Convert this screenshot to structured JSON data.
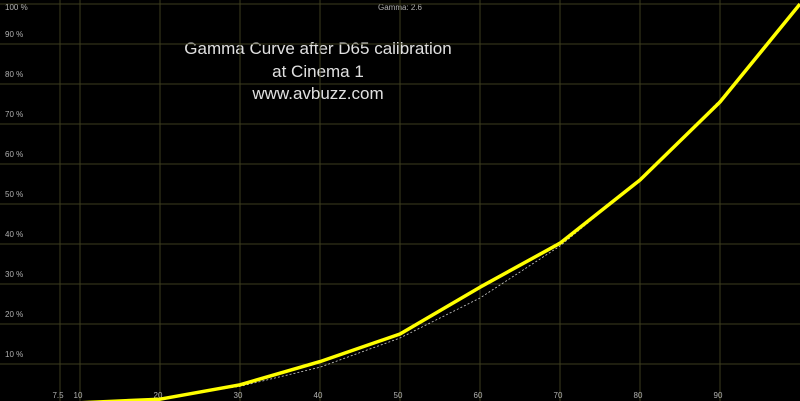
{
  "chart_data": {
    "type": "line",
    "title": "Gamma: 2.6",
    "annotations": [
      "Gamma Curve after D65 calibration",
      "at Cinema 1",
      "www.avbuzz.com"
    ],
    "x": [
      0,
      10,
      20,
      30,
      40,
      50,
      60,
      70,
      80,
      90,
      100
    ],
    "series": [
      {
        "color": "#ffff00",
        "style": "solid",
        "values": [
          0,
          0.3,
          1.2,
          4.8,
          10.6,
          17.5,
          29.2,
          40.2,
          56,
          75.5,
          100
        ]
      },
      {
        "color": "#cccccc",
        "style": "dashed",
        "values": [
          0,
          0.25,
          1.5,
          4.4,
          9.2,
          16.5,
          26.5,
          39.5,
          56,
          76,
          100
        ]
      }
    ],
    "xlim": [
      0,
      100
    ],
    "ylim": [
      0,
      100
    ],
    "xticks": [
      7.5,
      10,
      20,
      30,
      40,
      50,
      60,
      70,
      80,
      90
    ],
    "yticks": [
      {
        "value": 10,
        "label": "10 %"
      },
      {
        "value": 20,
        "label": "20 %"
      },
      {
        "value": 30,
        "label": "30 %"
      },
      {
        "value": 40,
        "label": "40 %"
      },
      {
        "value": 50,
        "label": "50 %"
      },
      {
        "value": 60,
        "label": "60 %"
      },
      {
        "value": 70,
        "label": "70 %"
      },
      {
        "value": 80,
        "label": "80 %"
      },
      {
        "value": 90,
        "label": "90 %"
      },
      {
        "value": 100,
        "label": "100 %"
      }
    ],
    "grid": true
  }
}
